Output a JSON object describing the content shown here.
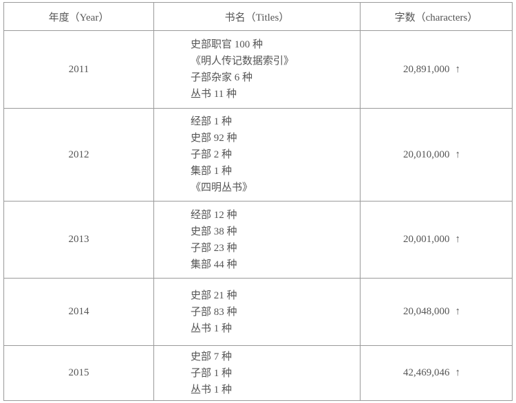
{
  "headers": {
    "year": "年度（Year）",
    "titles": "书名（Titles）",
    "characters": "字数（characters）"
  },
  "rows": [
    {
      "year": "2011",
      "titles": [
        "史部职官 100 种",
        "《明人传记数据索引》",
        "子部杂家 6 种",
        "丛书 11 种"
      ],
      "characters": "20,891,000",
      "arrow": "↑"
    },
    {
      "year": "2012",
      "titles": [
        "经部 1 种",
        "史部 92 种",
        "子部 2 种",
        "集部 1 种",
        "《四明丛书》"
      ],
      "characters": "20,010,000",
      "arrow": "↑"
    },
    {
      "year": "2013",
      "titles": [
        "经部 12 种",
        "史部 38 种",
        "子部 23 种",
        "集部 44 种"
      ],
      "characters": "20,001,000",
      "arrow": "↑"
    },
    {
      "year": "2014",
      "titles": [
        "史部 21 种",
        "子部 83 种",
        "丛书 1 种"
      ],
      "characters": "20,048,000",
      "arrow": "↑"
    },
    {
      "year": "2015",
      "titles": [
        "史部 7 种",
        "子部 1 种",
        "丛书 1 种"
      ],
      "characters": "42,469,046",
      "arrow": "↑"
    }
  ]
}
